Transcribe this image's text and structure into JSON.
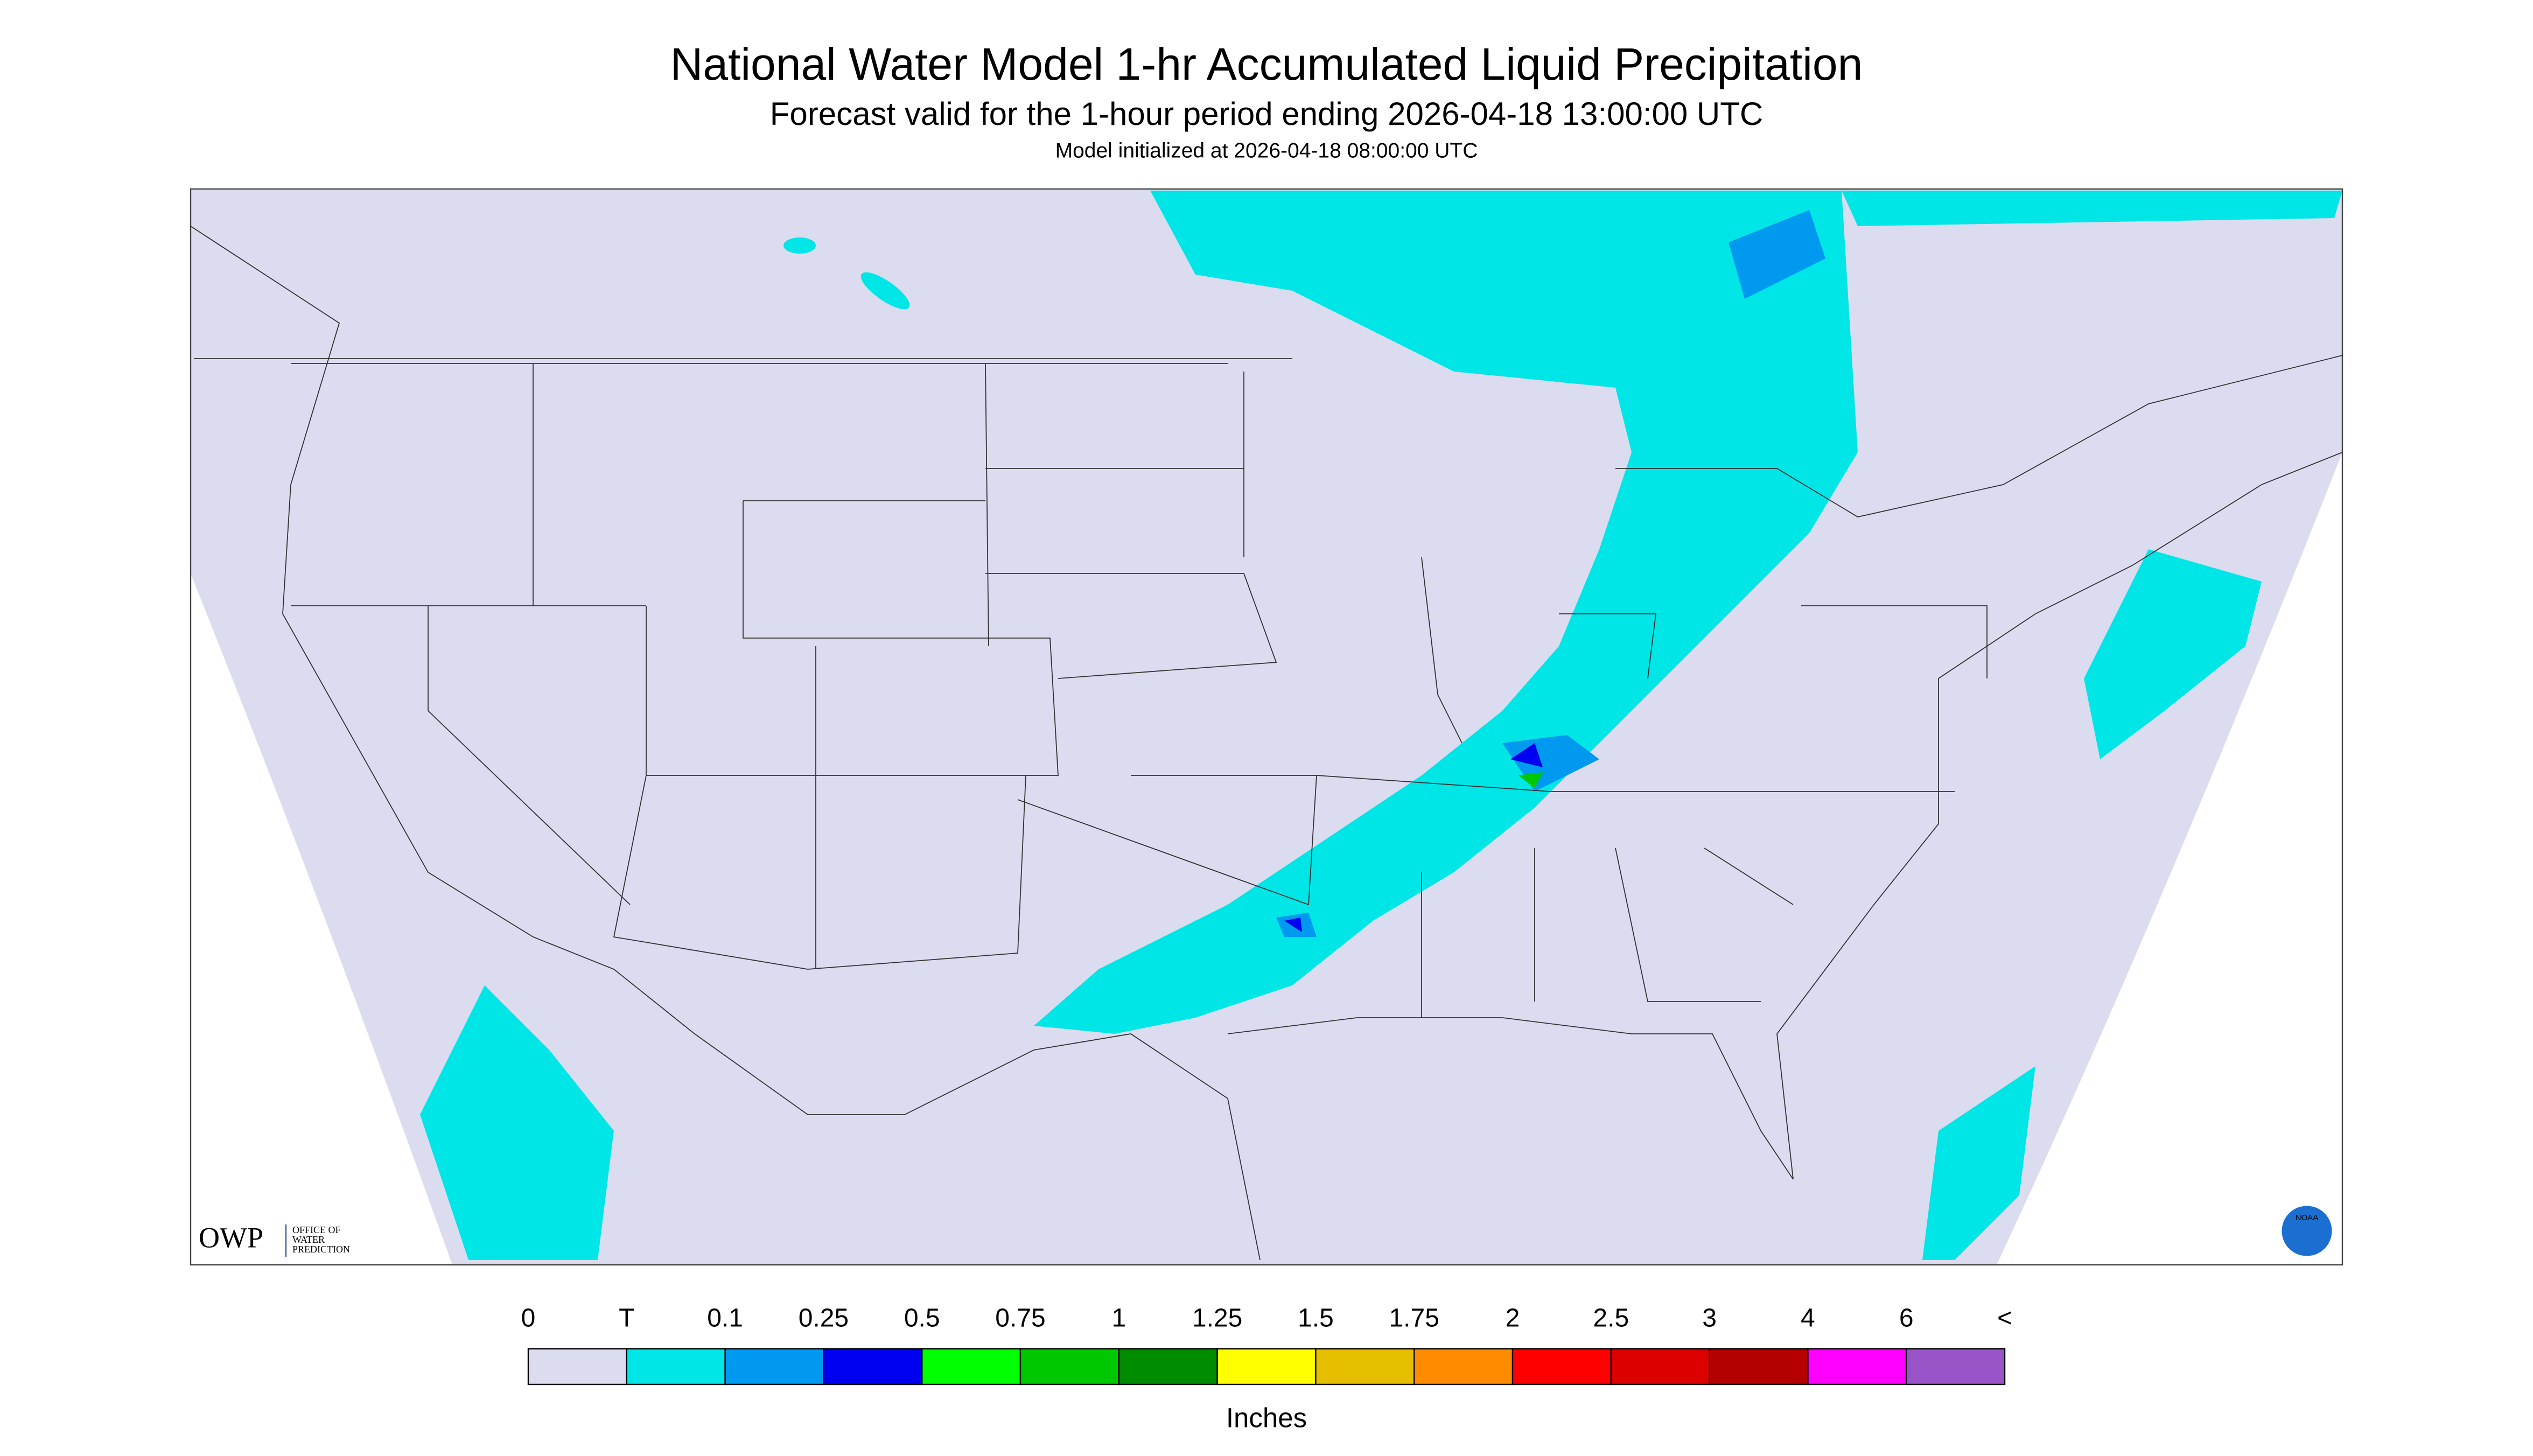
{
  "header": {
    "title": "National Water Model 1-hr Accumulated Liquid Precipitation",
    "subtitle": "Forecast valid for the 1-hour period ending 2026-04-18 13:00:00 UTC",
    "init": "Model initialized at 2026-04-18 08:00:00 UTC"
  },
  "logos": {
    "owp": "OWP",
    "owp_text": [
      "OFFICE OF",
      "WATER",
      "PREDICTION"
    ],
    "noaa": "NOAA"
  },
  "legend": {
    "labels": [
      "0",
      "T",
      "0.1",
      "0.25",
      "0.5",
      "0.75",
      "1",
      "1.25",
      "1.5",
      "1.75",
      "2",
      "2.5",
      "3",
      "4",
      "6",
      "<"
    ],
    "colors": [
      "#dcdcf0",
      "#00e6e6",
      "#0099f0",
      "#0000f0",
      "#00ff00",
      "#00c800",
      "#008c00",
      "#ffff00",
      "#e6be00",
      "#ff8c00",
      "#ff0000",
      "#dc0000",
      "#b40000",
      "#ff00ff",
      "#9955c8"
    ],
    "unit": "Inches"
  }
}
